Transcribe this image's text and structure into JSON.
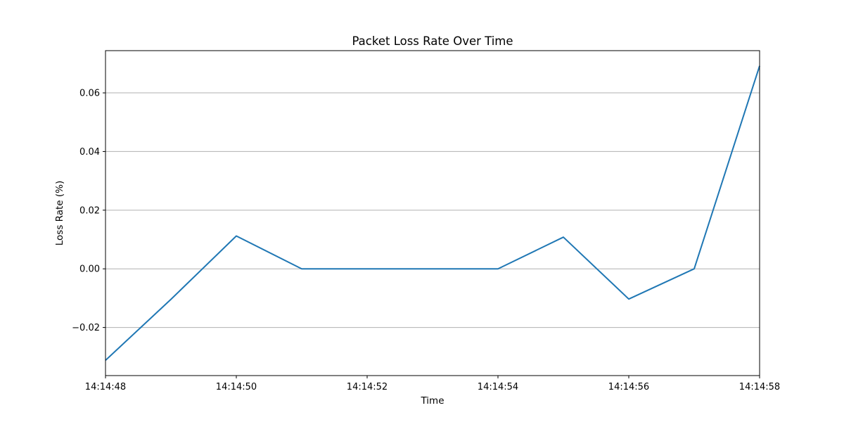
{
  "chart_data": {
    "type": "line",
    "title": "Packet Loss Rate Over Time",
    "xlabel": "Time",
    "ylabel": "Loss Rate (%)",
    "x": [
      "14:14:48",
      "14:14:49",
      "14:14:50",
      "14:14:51",
      "14:14:52",
      "14:14:53",
      "14:14:54",
      "14:14:55",
      "14:14:56",
      "14:14:57",
      "14:14:58"
    ],
    "series": [
      {
        "values": [
          -0.0312,
          -0.0104,
          0.0112,
          0.0,
          0.0,
          0.0,
          0.0,
          0.0108,
          -0.0103,
          0.0,
          0.0692
        ],
        "color": "#1f77b4"
      }
    ],
    "xticks": [
      "14:14:48",
      "14:14:50",
      "14:14:52",
      "14:14:54",
      "14:14:56",
      "14:14:58"
    ],
    "yticks": [
      -0.02,
      0.0,
      0.02,
      0.04,
      0.06
    ],
    "ytick_labels": [
      "−0.02",
      "0.00",
      "0.02",
      "0.04",
      "0.06"
    ],
    "ylim": [
      -0.0364,
      0.0744
    ],
    "grid": "y-axis only",
    "grid_color": "#b0b0b0"
  }
}
